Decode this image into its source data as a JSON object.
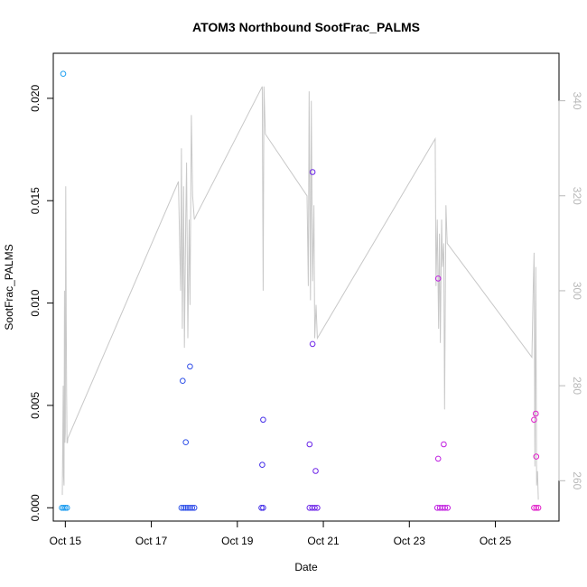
{
  "chart_data": {
    "type": "scatter",
    "title": "ATOM3 Northbound SootFrac_PALMS",
    "xlabel": "Date",
    "ylabel": "SootFrac_PALMS",
    "xlim": [
      14.52,
      26.28
    ],
    "ylim": [
      -0.00065,
      0.0222
    ],
    "y2lim": [
      251.5,
      350.0
    ],
    "grid": false,
    "x_ticks": [
      {
        "value": 14.8,
        "label": "Oct 15"
      },
      {
        "value": 16.8,
        "label": "Oct 17"
      },
      {
        "value": 18.8,
        "label": "Oct 19"
      },
      {
        "value": 20.8,
        "label": "Oct 21"
      },
      {
        "value": 22.8,
        "label": "Oct 23"
      },
      {
        "value": 24.8,
        "label": "Oct 25"
      }
    ],
    "y_ticks": [
      {
        "value": 0.0,
        "label": "0.000"
      },
      {
        "value": 0.005,
        "label": "0.005"
      },
      {
        "value": 0.01,
        "label": "0.010"
      },
      {
        "value": 0.015,
        "label": "0.015"
      },
      {
        "value": 0.02,
        "label": "0.020"
      }
    ],
    "y2_ticks": [
      {
        "value": 260,
        "label": "260"
      },
      {
        "value": 280,
        "label": "280"
      },
      {
        "value": 300,
        "label": "300"
      },
      {
        "value": 320,
        "label": "320"
      },
      {
        "value": 340,
        "label": "340"
      }
    ],
    "colors": {
      "line": "#c8c8c8",
      "right_axis": "#b8b8b8",
      "point_gradient": [
        "#1ea0f0",
        "#2a5ee8",
        "#3a2ee8",
        "#8a1ee8",
        "#c21ee0",
        "#e21ec8"
      ]
    },
    "points": [
      {
        "x": 14.75,
        "y": 0.0212
      },
      {
        "x": 14.72,
        "y": 0.0
      },
      {
        "x": 14.76,
        "y": 0.0
      },
      {
        "x": 14.8,
        "y": 0.0
      },
      {
        "x": 14.84,
        "y": 0.0
      },
      {
        "x": 17.53,
        "y": 0.0062
      },
      {
        "x": 17.7,
        "y": 0.0069
      },
      {
        "x": 17.6,
        "y": 0.0032
      },
      {
        "x": 17.5,
        "y": 0.0
      },
      {
        "x": 17.55,
        "y": 0.0
      },
      {
        "x": 17.6,
        "y": 0.0
      },
      {
        "x": 17.65,
        "y": 0.0
      },
      {
        "x": 17.7,
        "y": 0.0
      },
      {
        "x": 17.75,
        "y": 0.0
      },
      {
        "x": 17.8,
        "y": 0.0
      },
      {
        "x": 19.4,
        "y": 0.0043
      },
      {
        "x": 19.38,
        "y": 0.0021
      },
      {
        "x": 19.36,
        "y": 0.0
      },
      {
        "x": 19.4,
        "y": 0.0
      },
      {
        "x": 20.55,
        "y": 0.0164
      },
      {
        "x": 20.55,
        "y": 0.008
      },
      {
        "x": 20.48,
        "y": 0.0031
      },
      {
        "x": 20.62,
        "y": 0.0018
      },
      {
        "x": 20.48,
        "y": 0.0
      },
      {
        "x": 20.54,
        "y": 0.0
      },
      {
        "x": 20.6,
        "y": 0.0
      },
      {
        "x": 20.66,
        "y": 0.0
      },
      {
        "x": 23.47,
        "y": 0.0112
      },
      {
        "x": 23.6,
        "y": 0.0031
      },
      {
        "x": 23.47,
        "y": 0.0024
      },
      {
        "x": 23.45,
        "y": 0.0
      },
      {
        "x": 23.51,
        "y": 0.0
      },
      {
        "x": 23.57,
        "y": 0.0
      },
      {
        "x": 23.63,
        "y": 0.0
      },
      {
        "x": 23.69,
        "y": 0.0
      },
      {
        "x": 25.74,
        "y": 0.0046
      },
      {
        "x": 25.7,
        "y": 0.0043
      },
      {
        "x": 25.75,
        "y": 0.0025
      },
      {
        "x": 25.7,
        "y": 0.0
      },
      {
        "x": 25.75,
        "y": 0.0
      },
      {
        "x": 25.8,
        "y": 0.0
      }
    ],
    "line_series": {
      "axis": "right",
      "x": [
        14.73,
        14.75,
        14.76,
        14.77,
        14.78,
        14.79,
        14.8,
        14.81,
        14.82,
        14.83,
        14.84,
        14.85,
        14.86,
        17.43,
        17.48,
        17.5,
        17.52,
        17.55,
        17.57,
        17.6,
        17.62,
        17.65,
        17.68,
        17.7,
        17.73,
        17.76,
        17.8,
        17.85,
        19.38,
        19.4,
        19.42,
        19.45,
        20.42,
        20.45,
        20.47,
        20.5,
        20.52,
        20.55,
        20.58,
        20.6,
        20.63,
        20.66,
        23.4,
        23.42,
        23.45,
        23.48,
        23.5,
        23.52,
        23.55,
        23.57,
        23.6,
        23.62,
        23.65,
        23.68,
        25.65,
        25.68,
        25.7,
        25.72,
        25.74,
        25.76,
        25.78,
        25.8
      ],
      "y": [
        257,
        280,
        261,
        259,
        300,
        268,
        270,
        322,
        295,
        278,
        268,
        268,
        269,
        323,
        300,
        330,
        292,
        322,
        288,
        315,
        327,
        290,
        315,
        297,
        337,
        320,
        315,
        316,
        343,
        300,
        343,
        333,
        320,
        301,
        342,
        298,
        340,
        302,
        318,
        290,
        297,
        290,
        332,
        301,
        315,
        292,
        312,
        289,
        315,
        305,
        310,
        275,
        318,
        310,
        286,
        300,
        308,
        263,
        305,
        259,
        262,
        256
      ]
    }
  }
}
